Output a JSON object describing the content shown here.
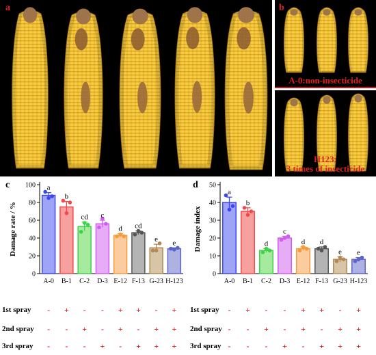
{
  "panel_a": {
    "label": "a"
  },
  "panel_b": {
    "label": "b",
    "top_caption": "A-0:non-insecticide",
    "bottom_caption_line1": "H123:",
    "bottom_caption_line2": "3 times of insecticide"
  },
  "colors": {
    "kernel": "#e8b52a",
    "kernel_shade": "#c48e12",
    "husk": "#a0744a",
    "divider": "#d01818",
    "label_red": "#e02020"
  },
  "treatment_rows": {
    "labels": [
      "1st spray",
      "2nd spray",
      "3rd spray"
    ],
    "symbols_left": [
      [
        "-",
        "+",
        "-",
        "-",
        "+",
        "+",
        "-",
        "+"
      ],
      [
        "-",
        "-",
        "+",
        "-",
        "+",
        "-",
        "+",
        "+"
      ],
      [
        "-",
        "-",
        "-",
        "+",
        "-",
        "+",
        "+",
        "+"
      ]
    ],
    "symbols_right": [
      [
        "-",
        "+",
        "-",
        "-",
        "+",
        "+",
        "-",
        "+"
      ],
      [
        "-",
        "-",
        "+",
        "-",
        "+",
        "-",
        "+",
        "+"
      ],
      [
        "-",
        "-",
        "-",
        "+",
        "-",
        "+",
        "+",
        "+"
      ]
    ]
  },
  "chart_data": [
    {
      "panel": "c",
      "type": "bar",
      "categories": [
        "A-0",
        "B-1",
        "C-2",
        "D-3",
        "E-12",
        "F-13",
        "G-23",
        "H-123"
      ],
      "values": [
        88,
        75,
        53,
        56,
        43,
        46,
        29,
        28
      ],
      "errors": [
        3,
        6,
        5,
        4,
        2,
        2,
        4,
        1
      ],
      "points": [
        [
          92,
          85,
          87
        ],
        [
          82,
          68,
          80
        ],
        [
          47,
          57,
          55
        ],
        [
          52,
          62,
          56
        ],
        [
          42,
          44,
          42
        ],
        [
          44,
          48,
          46
        ],
        [
          26,
          26,
          34
        ],
        [
          28,
          27,
          29
        ]
      ],
      "significance": [
        "a",
        "b",
        "cd",
        "c",
        "d",
        "cd",
        "e",
        "e"
      ],
      "colors": [
        "#3b46f0",
        "#f04a4a",
        "#3ed14a",
        "#d05cf0",
        "#f79a3a",
        "#555555",
        "#b08a55",
        "#5a63c8"
      ],
      "fills": [
        "#9ea4f6",
        "#f7a0a0",
        "#a6ea9e",
        "#e7acf6",
        "#fbcca0",
        "#b4b4b4",
        "#d8c4a6",
        "#aeb2e2"
      ],
      "ylabel": "Damage rate / %",
      "ylim": [
        0,
        100
      ],
      "yticks": [
        0,
        20,
        40,
        60,
        80,
        100
      ]
    },
    {
      "panel": "d",
      "type": "bar",
      "categories": [
        "A-0",
        "B-1",
        "C-2",
        "D-3",
        "E-12",
        "F-13",
        "G-23",
        "H-123"
      ],
      "values": [
        40,
        35,
        13,
        20,
        14,
        14,
        8,
        8
      ],
      "errors": [
        3,
        2,
        1,
        1,
        1,
        1,
        1.5,
        1
      ],
      "points": [
        [
          44,
          36,
          38
        ],
        [
          37,
          33,
          35
        ],
        [
          12,
          14,
          13
        ],
        [
          19,
          20,
          21
        ],
        [
          13,
          15,
          14
        ],
        [
          14,
          13,
          15
        ],
        [
          7,
          9,
          8
        ],
        [
          7,
          8,
          9
        ]
      ],
      "significance": [
        "a",
        "b",
        "d",
        "c",
        "d",
        "d",
        "e",
        "e"
      ],
      "colors": [
        "#3b46f0",
        "#f04a4a",
        "#3ed14a",
        "#d05cf0",
        "#f79a3a",
        "#555555",
        "#b08a55",
        "#5a63c8"
      ],
      "fills": [
        "#9ea4f6",
        "#f7a0a0",
        "#a6ea9e",
        "#e7acf6",
        "#fbcca0",
        "#b4b4b4",
        "#d8c4a6",
        "#aeb2e2"
      ],
      "ylabel": "Damage index",
      "ylim": [
        0,
        50
      ],
      "yticks": [
        0,
        10,
        20,
        30,
        40,
        50
      ]
    }
  ]
}
